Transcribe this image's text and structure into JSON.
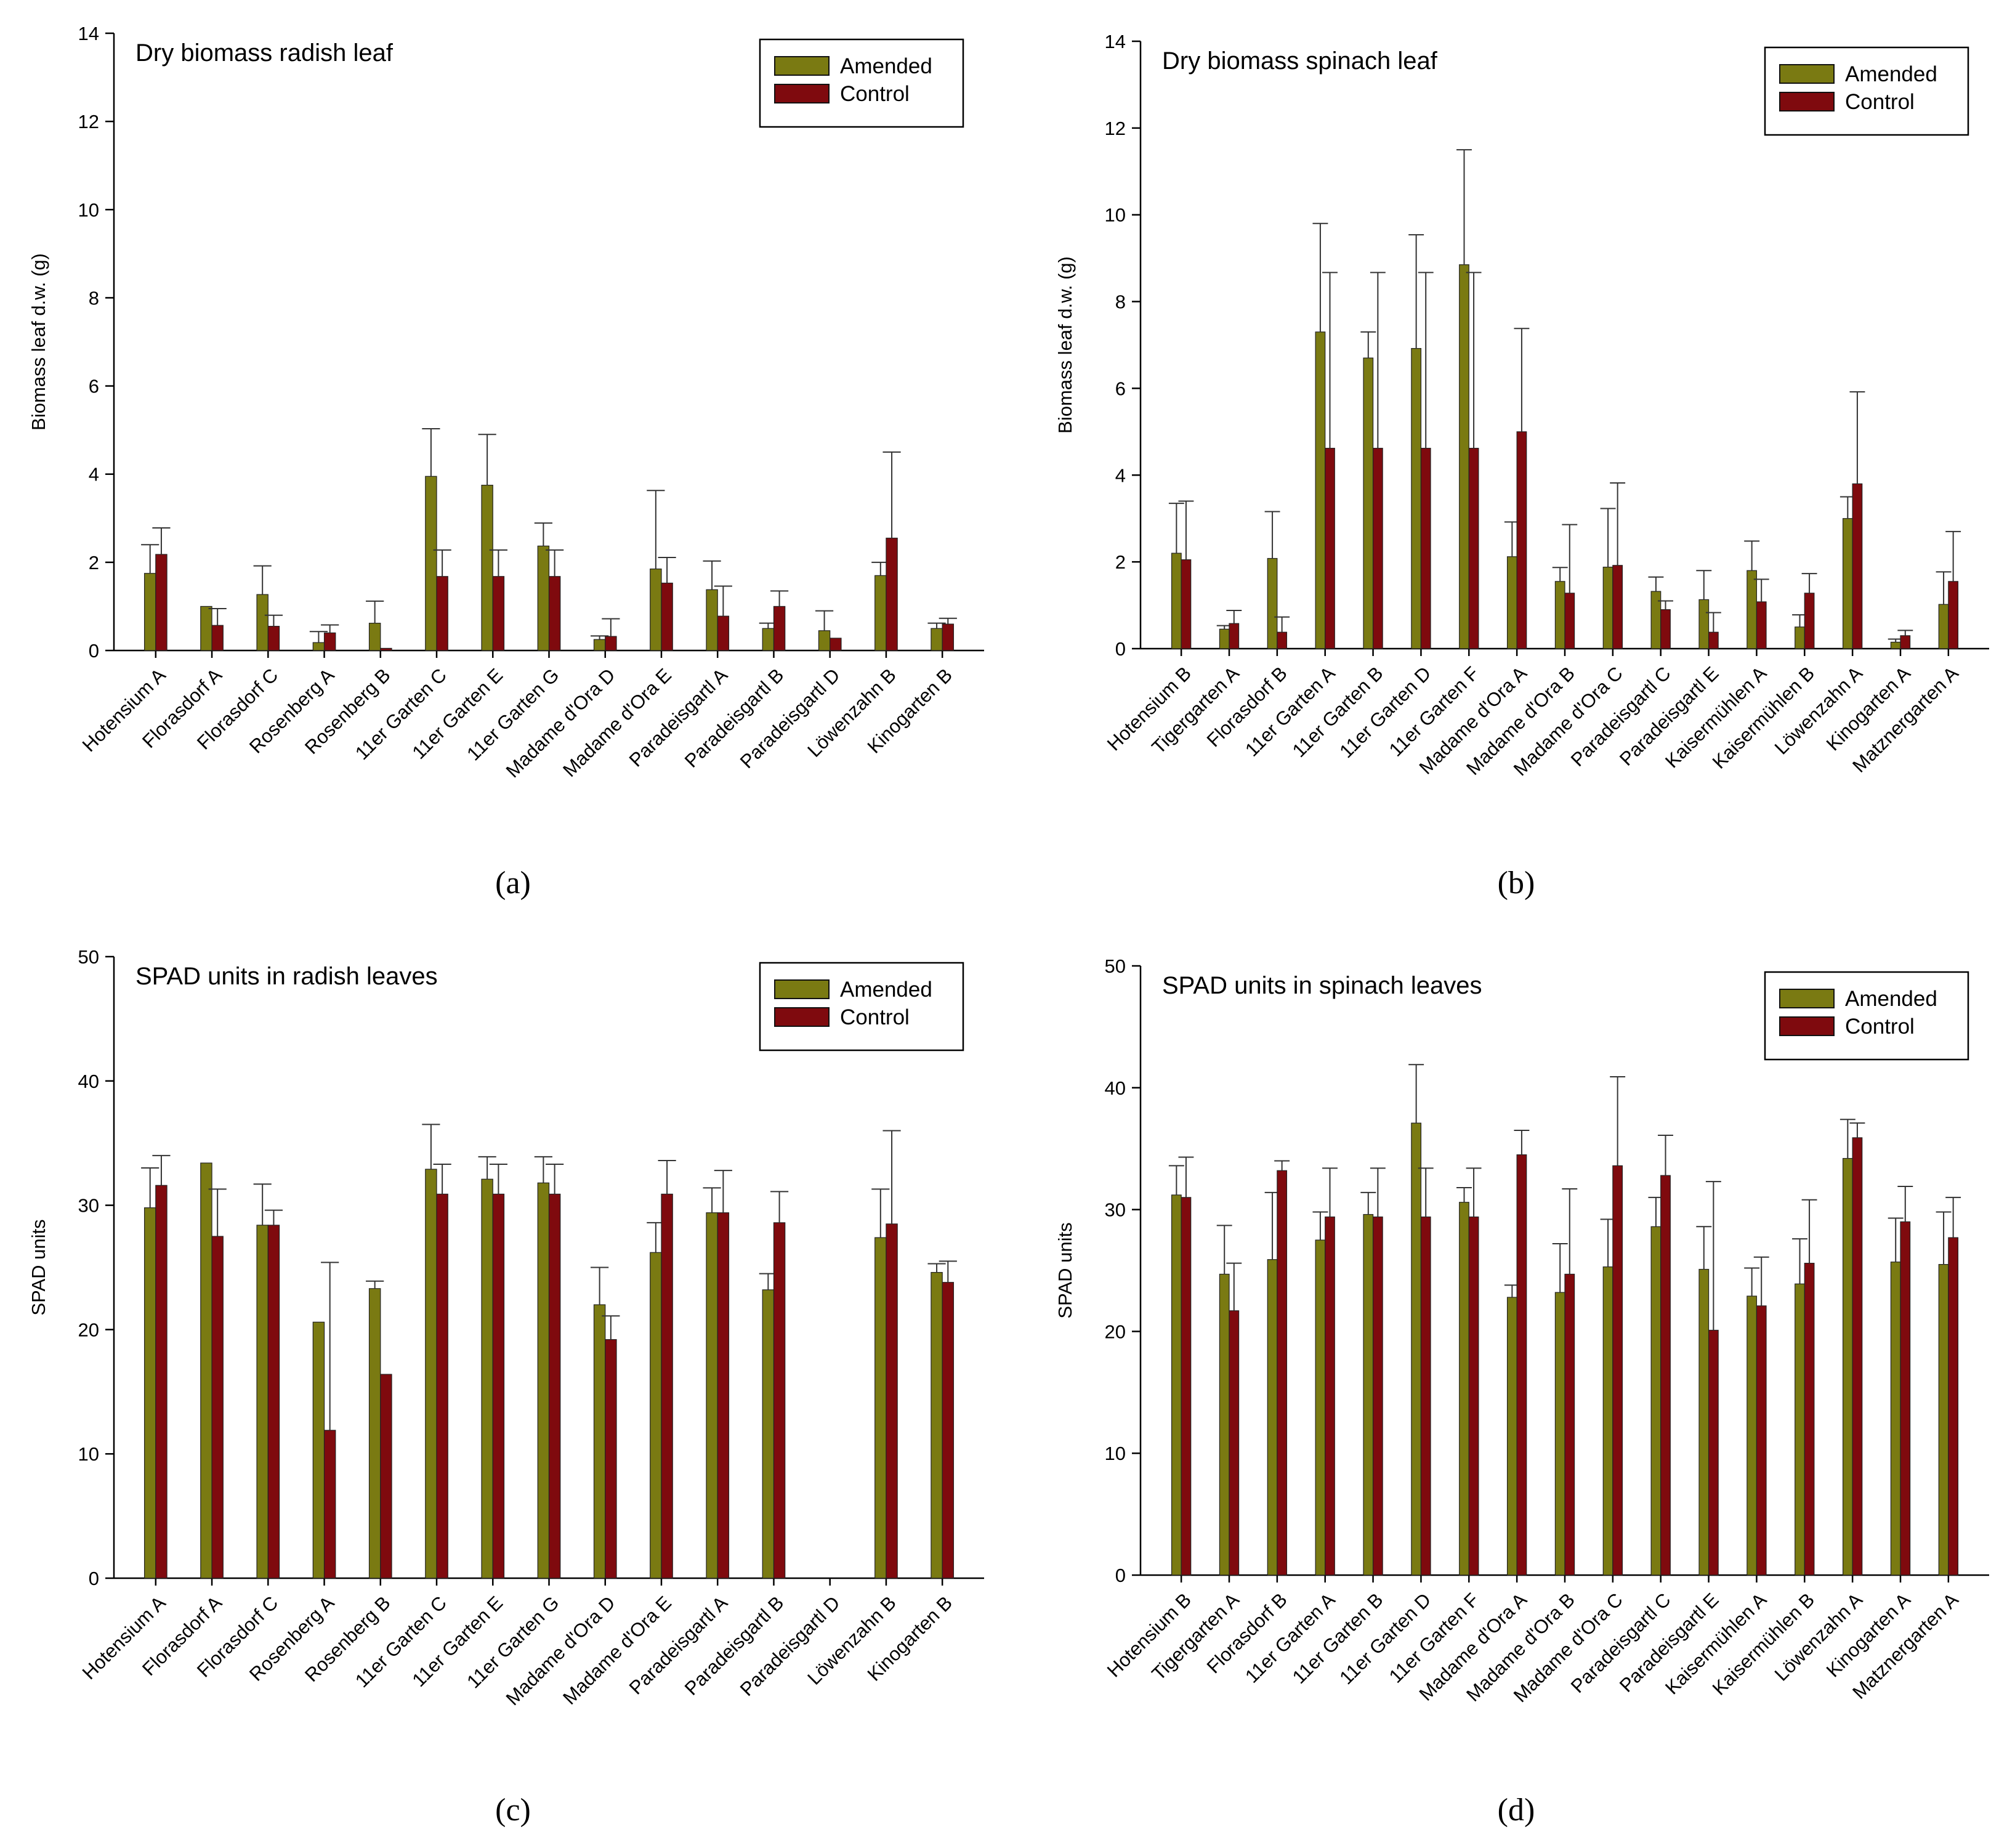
{
  "colors": {
    "amended": "#7a7a12",
    "control": "#7f0a0e",
    "axis": "#000000"
  },
  "panel_labels": [
    "(a)",
    "(b)",
    "(c)",
    "(d)"
  ],
  "chart_data": [
    {
      "type": "bar",
      "title": "Dry biomass radish leaf",
      "ylabel": "Biomass leaf d.w. (g)",
      "xlabel": "",
      "ylim": [
        0,
        14
      ],
      "yticks": [
        0,
        2,
        4,
        6,
        8,
        10,
        12,
        14
      ],
      "legend_position": "top-right",
      "categories": [
        "Hotensium A",
        "Florasdorf A",
        "Florasdorf C",
        "Rosenberg A",
        "Rosenberg B",
        "11er Garten C",
        "11er Garten E",
        "11er Garten G",
        "Madame d'Ora D",
        "Madame d'Ora E",
        "Paradeisgartl A",
        "Paradeisgartl B",
        "Paradeisgartl D",
        "Löwenzahn B",
        "Kinogarten B"
      ],
      "series": [
        {
          "name": "Amended",
          "values": [
            1.75,
            1.0,
            1.27,
            0.18,
            0.62,
            3.95,
            3.75,
            2.37,
            0.25,
            1.85,
            1.38,
            0.5,
            0.45,
            1.7,
            0.5
          ],
          "errors": [
            0.65,
            0.0,
            0.65,
            0.25,
            0.5,
            1.08,
            1.15,
            0.52,
            0.08,
            1.78,
            0.65,
            0.12,
            0.45,
            0.3,
            0.12
          ]
        },
        {
          "name": "Control",
          "values": [
            2.18,
            0.57,
            0.55,
            0.4,
            0.05,
            1.68,
            1.68,
            1.68,
            0.32,
            1.53,
            0.78,
            1.0,
            0.28,
            2.55,
            0.6
          ],
          "errors": [
            0.6,
            0.38,
            0.25,
            0.18,
            0.0,
            0.6,
            0.6,
            0.6,
            0.4,
            0.58,
            0.68,
            0.35,
            0.0,
            1.95,
            0.13
          ]
        }
      ]
    },
    {
      "type": "bar",
      "title": "Dry biomass spinach leaf",
      "ylabel": "Biomass leaf d.w. (g)",
      "xlabel": "",
      "ylim": [
        0,
        14
      ],
      "yticks": [
        0,
        2,
        4,
        6,
        8,
        10,
        12,
        14
      ],
      "legend_position": "top-right",
      "categories": [
        "Hotensium B",
        "Tigergarten A",
        "Florasdorf B",
        "11er Garten A",
        "11er Garten B",
        "11er Garten D",
        "11er Garten F",
        "Madame d'Ora A",
        "Madame d'Ora B",
        "Madame d'Ora C",
        "Paradeisgartl C",
        "Paradeisgartl E",
        "Kaisermühlen A",
        "Kaisermühlen B",
        "Löwenzahn A",
        "Kinogarten A",
        "Matznergarten A"
      ],
      "series": [
        {
          "name": "Amended",
          "values": [
            2.2,
            0.45,
            2.08,
            7.3,
            6.7,
            6.92,
            8.85,
            2.12,
            1.55,
            1.88,
            1.32,
            1.13,
            1.8,
            0.5,
            3.0,
            0.15,
            1.02
          ],
          "errors": [
            1.15,
            0.08,
            1.08,
            2.5,
            0.6,
            2.62,
            2.65,
            0.8,
            0.32,
            1.35,
            0.33,
            0.67,
            0.68,
            0.28,
            0.5,
            0.07,
            0.75
          ]
        },
        {
          "name": "Control",
          "values": [
            2.05,
            0.58,
            0.38,
            4.62,
            4.62,
            4.62,
            4.62,
            5.0,
            1.28,
            1.92,
            0.9,
            0.38,
            1.08,
            1.28,
            3.8,
            0.3,
            1.55
          ],
          "errors": [
            1.35,
            0.3,
            0.35,
            4.05,
            4.05,
            4.05,
            4.05,
            2.38,
            1.58,
            1.9,
            0.2,
            0.45,
            0.52,
            0.45,
            2.12,
            0.12,
            1.15
          ]
        }
      ]
    },
    {
      "type": "bar",
      "title": "SPAD units in radish leaves",
      "ylabel": "SPAD units",
      "xlabel": "",
      "ylim": [
        0,
        50
      ],
      "yticks": [
        0,
        10,
        20,
        30,
        40,
        50
      ],
      "legend_position": "top-right",
      "categories": [
        "Hotensium A",
        "Florasdorf A",
        "Florasdorf C",
        "Rosenberg A",
        "Rosenberg B",
        "11er Garten C",
        "11er Garten E",
        "11er Garten G",
        "Madame d'Ora D",
        "Madame d'Ora E",
        "Paradeisgartl A",
        "Paradeisgartl B",
        "Paradeisgartl D",
        "Löwenzahn B",
        "Kinogarten B"
      ],
      "series": [
        {
          "name": "Amended",
          "values": [
            29.8,
            33.4,
            28.4,
            20.6,
            23.3,
            32.9,
            32.1,
            31.8,
            22.0,
            26.2,
            29.4,
            23.2,
            0,
            27.4,
            24.6
          ],
          "errors": [
            3.2,
            0.0,
            3.3,
            0.0,
            0.6,
            3.6,
            1.8,
            2.1,
            3.0,
            2.4,
            2.0,
            1.3,
            0,
            3.9,
            0.7
          ]
        },
        {
          "name": "Control",
          "values": [
            31.6,
            27.5,
            28.4,
            11.9,
            16.4,
            30.9,
            30.9,
            30.9,
            19.2,
            30.9,
            29.4,
            28.6,
            0,
            28.5,
            23.8
          ],
          "errors": [
            2.4,
            3.8,
            1.2,
            13.5,
            0.0,
            2.4,
            2.4,
            2.4,
            1.9,
            2.7,
            3.4,
            2.5,
            0,
            7.5,
            1.7
          ]
        }
      ]
    },
    {
      "type": "bar",
      "title": "SPAD units in spinach leaves",
      "ylabel": "SPAD units",
      "xlabel": "",
      "ylim": [
        0,
        50
      ],
      "yticks": [
        0,
        10,
        20,
        30,
        40,
        50
      ],
      "legend_position": "top-right",
      "categories": [
        "Hotensium B",
        "Tigergarten A",
        "Florasdorf B",
        "11er Garten A",
        "11er Garten B",
        "11er Garten D",
        "11er Garten F",
        "Madame d'Ora A",
        "Madame d'Ora B",
        "Madame d'Ora C",
        "Paradeisgartl C",
        "Paradeisgartl E",
        "Kaisermühlen A",
        "Kaisermühlen B",
        "Löwenzahn A",
        "Kinogarten A",
        "Matznergarten A"
      ],
      "series": [
        {
          "name": "Amended",
          "values": [
            31.2,
            24.7,
            25.9,
            27.5,
            29.6,
            37.1,
            30.6,
            22.8,
            23.2,
            25.3,
            28.6,
            25.1,
            22.9,
            23.9,
            34.2,
            25.7,
            25.5
          ],
          "errors": [
            2.4,
            4.0,
            5.5,
            2.3,
            1.8,
            4.8,
            1.2,
            1.0,
            4.0,
            3.9,
            2.4,
            3.5,
            2.3,
            3.7,
            3.2,
            3.6,
            4.3
          ]
        },
        {
          "name": "Control",
          "values": [
            31.0,
            21.7,
            33.2,
            29.4,
            29.4,
            29.4,
            29.4,
            34.5,
            24.7,
            33.6,
            32.8,
            20.1,
            22.1,
            25.6,
            35.9,
            29.0,
            27.7
          ],
          "errors": [
            3.3,
            3.9,
            0.8,
            4.0,
            4.0,
            4.0,
            4.0,
            2.0,
            7.0,
            7.3,
            3.3,
            12.2,
            4.0,
            5.2,
            1.2,
            2.9,
            3.3
          ]
        }
      ]
    }
  ]
}
